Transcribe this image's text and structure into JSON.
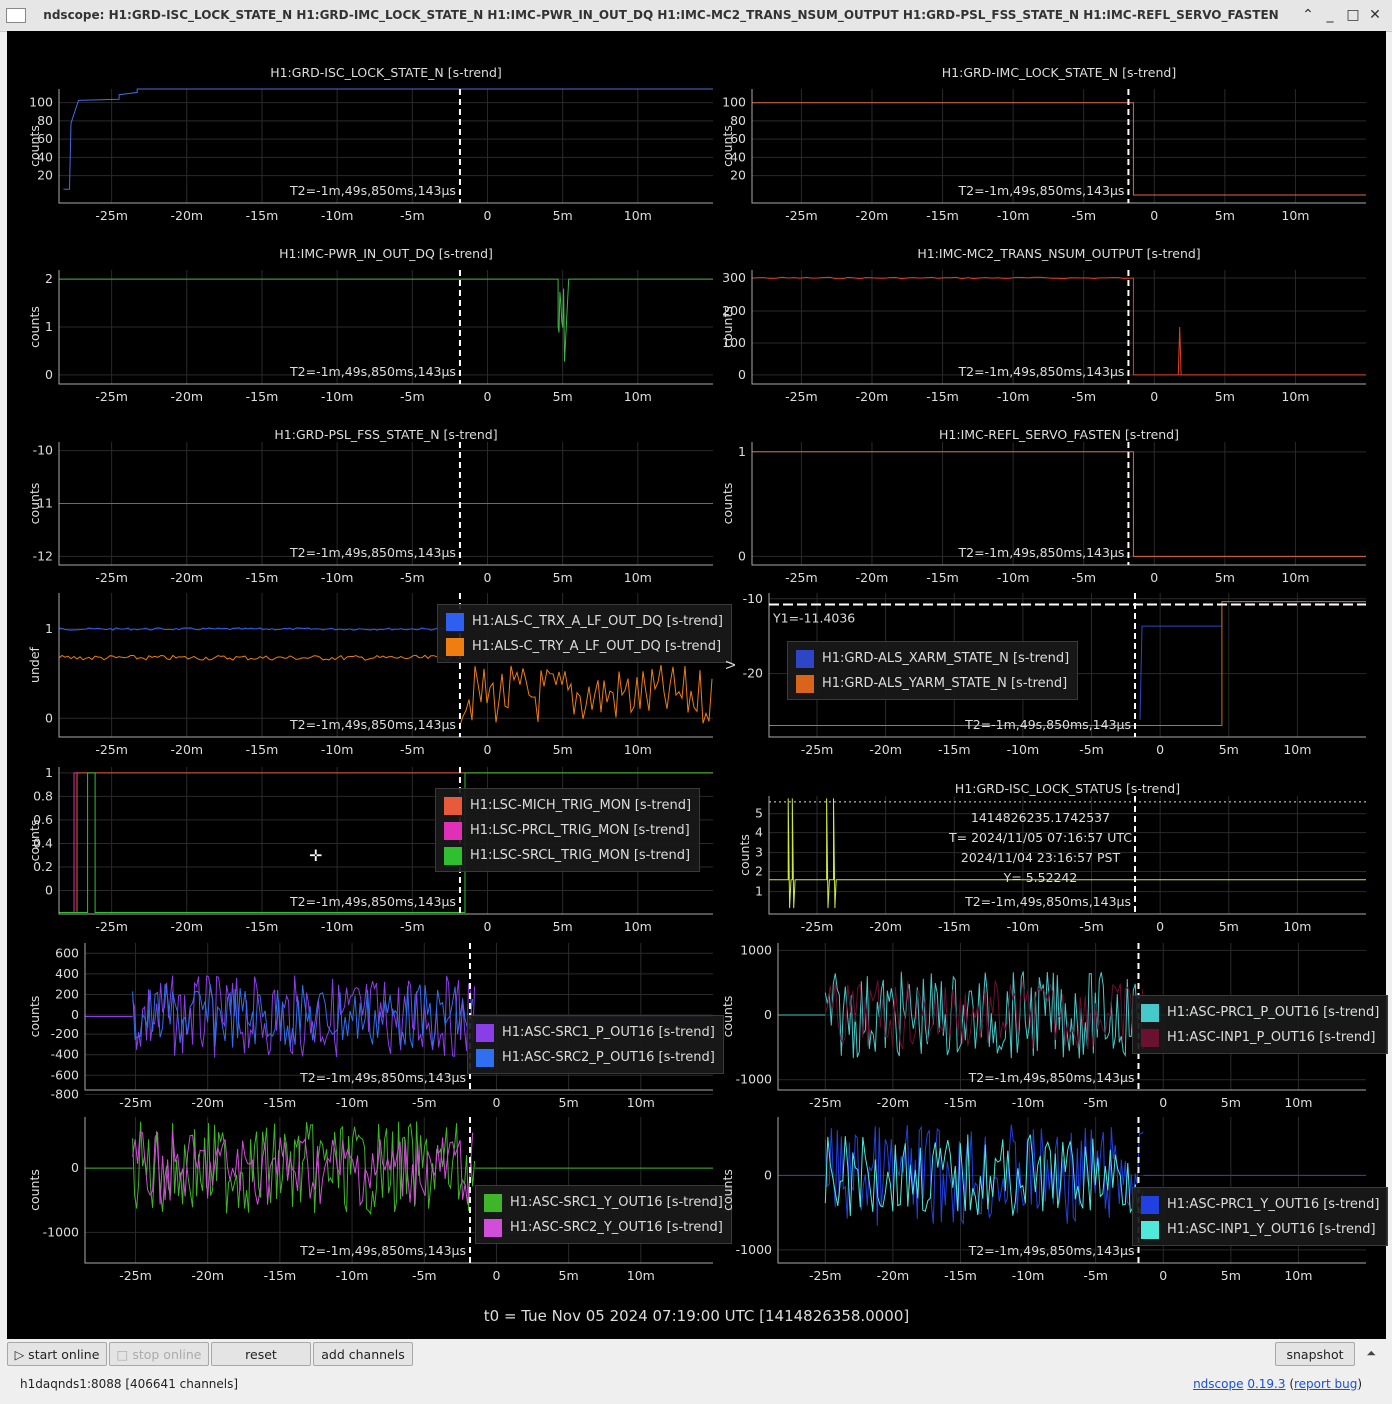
{
  "window": {
    "title": "ndscope: H1:GRD-ISC_LOCK_STATE_N H1:GRD-IMC_LOCK_STATE_N H1:IMC-PWR_IN_OUT_DQ H1:IMC-MC2_TRANS_NSUM_OUTPUT H1:GRD-PSL_FSS_STATE_N H1:IMC-REFL_SERVO_FASTEN",
    "controls": [
      "⌃",
      "_",
      "□",
      "✕"
    ]
  },
  "t0_label": "t0 = Tue Nov 05 2024 07:19:00 UTC [1414826358.0000]",
  "t2_label": "T2=-1m,49s,850ms,143µs",
  "x_tick_labels": [
    "-25m",
    "-20m",
    "-15m",
    "-10m",
    "-5m",
    "0",
    "5m",
    "10m"
  ],
  "cursor_info": {
    "gps": "1414826235.1742537",
    "utc": "T= 2024/11/05 07:16:57 UTC",
    "pst": "2024/11/04 23:16:57 PST",
    "y": "Y= 5.52242"
  },
  "y1_label": "Y1=-11.4036",
  "plots": [
    {
      "title": "H1:GRD-ISC_LOCK_STATE_N [s-trend]",
      "ylabel": "counts",
      "yticks": [
        "100",
        "80",
        "60",
        "40",
        "20"
      ],
      "colors": [
        "#4a6ce0"
      ],
      "legend": []
    },
    {
      "title": "H1:GRD-IMC_LOCK_STATE_N [s-trend]",
      "ylabel": "counts",
      "yticks": [
        "100",
        "80",
        "60",
        "40",
        "20"
      ],
      "colors": [
        "#e0684a"
      ],
      "legend": []
    },
    {
      "title": "H1:IMC-PWR_IN_OUT_DQ [s-trend]",
      "ylabel": "counts",
      "yticks": [
        "2",
        "1",
        "0"
      ],
      "colors": [
        "#3fb543"
      ],
      "legend": []
    },
    {
      "title": "H1:IMC-MC2_TRANS_NSUM_OUTPUT [s-trend]",
      "ylabel": "counts",
      "yticks": [
        "300",
        "200",
        "100",
        "0"
      ],
      "colors": [
        "#e0402a"
      ],
      "legend": []
    },
    {
      "title": "H1:GRD-PSL_FSS_STATE_N [s-trend]",
      "ylabel": "counts",
      "yticks": [
        "-10",
        "-11",
        "-12"
      ],
      "colors": [
        "#5a5ee0"
      ],
      "legend": []
    },
    {
      "title": "H1:IMC-REFL_SERVO_FASTEN [s-trend]",
      "ylabel": "counts",
      "yticks": [
        "1",
        "0"
      ],
      "colors": [
        "#e0684a"
      ],
      "legend": []
    },
    {
      "title": "",
      "ylabel": "undef",
      "yticks": [
        "1",
        "0"
      ],
      "colors": [
        "#2f5ff0",
        "#ef7d10"
      ],
      "legend": [
        {
          "label": "H1:ALS-C_TRX_A_LF_OUT_DQ [s-trend]",
          "color": "#2f5ff0"
        },
        {
          "label": "H1:ALS-C_TRY_A_LF_OUT_DQ [s-trend]",
          "color": "#ef7d10"
        }
      ]
    },
    {
      "title": "",
      "ylabel": "V",
      "yticks": [
        "-10",
        "-20"
      ],
      "colors": [
        "#2f45c8",
        "#d9651a"
      ],
      "legend": [
        {
          "label": "H1:GRD-ALS_XARM_STATE_N [s-trend]",
          "color": "#2f45c8"
        },
        {
          "label": "H1:GRD-ALS_YARM_STATE_N [s-trend]",
          "color": "#d9651a"
        }
      ]
    },
    {
      "title": "",
      "ylabel": "counts",
      "yticks": [
        "1",
        "0.8",
        "0.6",
        "0.4",
        "0.2",
        "0"
      ],
      "colors": [
        "#e85a3c",
        "#e030b8",
        "#2ec02e"
      ],
      "legend": [
        {
          "label": "H1:LSC-MICH_TRIG_MON [s-trend]",
          "color": "#e85a3c"
        },
        {
          "label": "H1:LSC-PRCL_TRIG_MON [s-trend]",
          "color": "#e030b8"
        },
        {
          "label": "H1:LSC-SRCL_TRIG_MON [s-trend]",
          "color": "#2ec02e"
        }
      ]
    },
    {
      "title": "H1:GRD-ISC_LOCK_STATUS [s-trend]",
      "ylabel": "counts",
      "yticks": [
        "5",
        "4",
        "3",
        "2",
        "1"
      ],
      "colors": [
        "#cfe83a"
      ],
      "legend": []
    },
    {
      "title": "",
      "ylabel": "counts",
      "yticks": [
        "600",
        "400",
        "200",
        "0",
        "-200",
        "-400",
        "-600",
        "-800"
      ],
      "colors": [
        "#8a3ee8",
        "#2f6ff0"
      ],
      "legend": [
        {
          "label": "H1:ASC-SRC1_P_OUT16 [s-trend]",
          "color": "#8a3ee8"
        },
        {
          "label": "H1:ASC-SRC2_P_OUT16 [s-trend]",
          "color": "#2f6ff0"
        }
      ]
    },
    {
      "title": "",
      "ylabel": "counts",
      "yticks": [
        "1000",
        "0",
        "-1000"
      ],
      "colors": [
        "#45c9c9",
        "#6a1030"
      ],
      "legend": [
        {
          "label": "H1:ASC-PRC1_P_OUT16 [s-trend]",
          "color": "#45c9c9"
        },
        {
          "label": "H1:ASC-INP1_P_OUT16 [s-trend]",
          "color": "#6a1030"
        }
      ]
    },
    {
      "title": "",
      "ylabel": "counts",
      "yticks": [
        "0",
        "-1000"
      ],
      "colors": [
        "#3fb52a",
        "#d04ed8"
      ],
      "legend": [
        {
          "label": "H1:ASC-SRC1_Y_OUT16 [s-trend]",
          "color": "#3fb52a"
        },
        {
          "label": "H1:ASC-SRC2_Y_OUT16 [s-trend]",
          "color": "#d04ed8"
        }
      ]
    },
    {
      "title": "",
      "ylabel": "counts",
      "yticks": [
        "0",
        "-1000"
      ],
      "colors": [
        "#2040e0",
        "#50e8d8"
      ],
      "legend": [
        {
          "label": "H1:ASC-PRC1_Y_OUT16 [s-trend]",
          "color": "#2040e0"
        },
        {
          "label": "H1:ASC-INP1_Y_OUT16 [s-trend]",
          "color": "#50e8d8"
        }
      ]
    }
  ],
  "toolbar": {
    "start_online": "▷ start online",
    "stop_online": "□ stop online",
    "reset": "reset",
    "add_channels": "add channels",
    "snapshot": "snapshot",
    "collapse": "⏶"
  },
  "status": {
    "server": "h1daqnds1:8088  [406641 channels]",
    "app_name": "ndscope",
    "version": "0.19.3",
    "bug_link": "report bug"
  }
}
